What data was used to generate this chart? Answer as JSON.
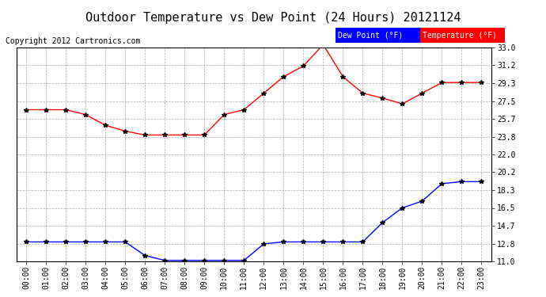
{
  "title": "Outdoor Temperature vs Dew Point (24 Hours) 20121124",
  "copyright": "Copyright 2012 Cartronics.com",
  "hours": [
    "00:00",
    "01:00",
    "02:00",
    "03:00",
    "04:00",
    "05:00",
    "06:00",
    "07:00",
    "08:00",
    "09:00",
    "10:00",
    "11:00",
    "12:00",
    "13:00",
    "14:00",
    "15:00",
    "16:00",
    "17:00",
    "18:00",
    "19:00",
    "20:00",
    "21:00",
    "22:00",
    "23:00"
  ],
  "temperature": [
    26.6,
    26.6,
    26.6,
    26.1,
    25.0,
    24.4,
    24.0,
    24.0,
    24.0,
    24.0,
    26.1,
    26.6,
    28.3,
    30.0,
    31.1,
    33.3,
    30.0,
    28.3,
    27.8,
    27.2,
    28.3,
    29.4,
    29.4,
    29.4
  ],
  "dew_point": [
    13.0,
    13.0,
    13.0,
    13.0,
    13.0,
    13.0,
    11.6,
    11.1,
    11.1,
    11.1,
    11.1,
    11.1,
    12.8,
    13.0,
    13.0,
    13.0,
    13.0,
    13.0,
    15.0,
    16.5,
    17.2,
    19.0,
    19.2,
    19.2
  ],
  "temp_color": "#ff0000",
  "dew_color": "#0000ff",
  "bg_color": "#ffffff",
  "plot_bg_color": "#ffffff",
  "grid_color": "#aaaaaa",
  "ylim_min": 11.0,
  "ylim_max": 33.0,
  "yticks": [
    11.0,
    12.8,
    14.7,
    16.5,
    18.3,
    20.2,
    22.0,
    23.8,
    25.7,
    27.5,
    29.3,
    31.2,
    33.0
  ],
  "legend_dew_bg": "#0000ff",
  "legend_temp_bg": "#ff0000",
  "legend_text_color": "#ffffff",
  "title_fontsize": 11,
  "copyright_fontsize": 7,
  "axis_fontsize": 7,
  "marker": "*",
  "marker_color": "#000000",
  "marker_size": 4
}
